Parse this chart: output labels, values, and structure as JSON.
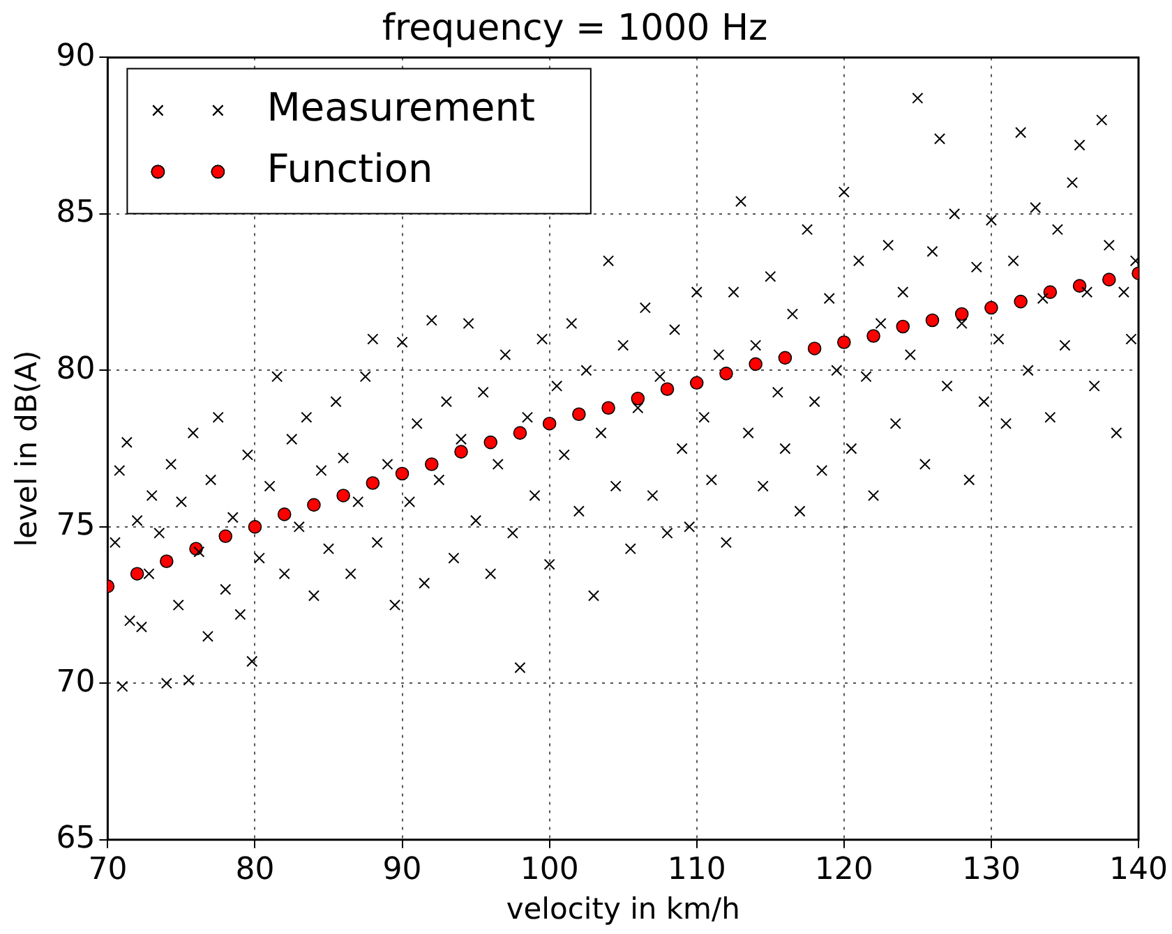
{
  "chart_data": {
    "type": "scatter",
    "title": "frequency = 1000 Hz",
    "xlabel": "velocity in km/h",
    "ylabel": "level in dB(A)",
    "xlim": [
      70,
      140
    ],
    "xticks": [
      70,
      80,
      90,
      100,
      110,
      120,
      130,
      140
    ],
    "ylim": [
      65,
      90
    ],
    "yticks": [
      65,
      70,
      75,
      80,
      85,
      90
    ],
    "grid": true,
    "legend": "top left",
    "series": [
      {
        "name": "Measurement",
        "color": "#000000",
        "marker": "cross",
        "x": [
          70.5,
          70.8,
          71,
          71.3,
          71.5,
          72,
          72.3,
          72.8,
          73,
          73.5,
          74,
          74.3,
          74.8,
          75,
          75.5,
          75.8,
          76.2,
          76.8,
          77,
          77.5,
          78,
          78.5,
          79,
          79.5,
          79.8,
          80.3,
          81,
          81.5,
          82,
          82.5,
          83,
          83.5,
          84,
          84.5,
          85,
          85.5,
          86,
          86.5,
          87,
          87.5,
          88,
          88.3,
          89,
          89.5,
          90,
          90.5,
          91,
          91.5,
          92,
          92.5,
          93,
          93.5,
          94,
          94.5,
          95,
          95.5,
          96,
          96.5,
          97,
          97.5,
          98,
          98.5,
          99,
          99.5,
          100,
          100.5,
          101,
          101.5,
          102,
          102.5,
          103,
          103.5,
          104,
          104.5,
          105,
          105.5,
          106,
          106.5,
          107,
          107.5,
          108,
          108.5,
          109,
          109.5,
          110,
          110.5,
          111,
          111.5,
          112,
          112.5,
          113,
          113.5,
          114,
          114.5,
          115,
          115.5,
          116,
          116.5,
          117,
          117.5,
          118,
          118.5,
          119,
          119.5,
          120,
          120.5,
          121,
          121.5,
          122,
          122.5,
          123,
          123.5,
          124,
          124.5,
          125,
          125.5,
          126,
          126.5,
          127,
          127.5,
          128,
          128.5,
          129,
          129.5,
          130,
          130.5,
          131,
          131.5,
          132,
          132.5,
          133,
          133.5,
          134,
          134.5,
          135,
          135.5,
          136,
          136.5,
          137,
          137.5,
          138,
          138.5,
          139,
          139.5,
          139.8
        ],
        "values": [
          74.5,
          76.8,
          69.9,
          77.7,
          72.0,
          75.2,
          71.8,
          73.5,
          76.0,
          74.8,
          70.0,
          77.0,
          72.5,
          75.8,
          70.1,
          78.0,
          74.2,
          71.5,
          76.5,
          78.5,
          73.0,
          75.3,
          72.2,
          77.3,
          70.7,
          74.0,
          76.3,
          79.8,
          73.5,
          77.8,
          75.0,
          78.5,
          72.8,
          76.8,
          74.3,
          79.0,
          77.2,
          73.5,
          75.8,
          79.8,
          81.0,
          74.5,
          77.0,
          72.5,
          80.9,
          75.8,
          78.3,
          73.2,
          81.6,
          76.5,
          79.0,
          74.0,
          77.8,
          81.5,
          75.2,
          79.3,
          73.5,
          77.0,
          80.5,
          74.8,
          70.5,
          78.5,
          76.0,
          81.0,
          73.8,
          79.5,
          77.3,
          81.5,
          75.5,
          80.0,
          72.8,
          78.0,
          83.5,
          76.3,
          80.8,
          74.3,
          78.8,
          82.0,
          76.0,
          79.8,
          74.8,
          81.3,
          77.5,
          75.0,
          82.5,
          78.5,
          76.5,
          80.5,
          74.5,
          82.5,
          85.4,
          78.0,
          80.8,
          76.3,
          83.0,
          79.3,
          77.5,
          81.8,
          75.5,
          84.5,
          79.0,
          76.8,
          82.3,
          80.0,
          85.7,
          77.5,
          83.5,
          79.8,
          76.0,
          81.5,
          84.0,
          78.3,
          82.5,
          80.5,
          88.7,
          77.0,
          83.8,
          87.4,
          79.5,
          85.0,
          81.5,
          76.5,
          83.3,
          79.0,
          84.8,
          81.0,
          78.3,
          83.5,
          87.6,
          80.0,
          85.2,
          82.3,
          78.5,
          84.5,
          80.8,
          86.0,
          87.2,
          82.5,
          79.5,
          88.0,
          84.0,
          78.0,
          82.5,
          81.0,
          83.5
        ]
      },
      {
        "name": "Function",
        "color": "#ff0000",
        "marker": "circle",
        "x": [
          70,
          72,
          74,
          76,
          78,
          80,
          82,
          84,
          86,
          88,
          90,
          92,
          94,
          96,
          98,
          100,
          102,
          104,
          106,
          108,
          110,
          112,
          114,
          116,
          118,
          120,
          122,
          124,
          126,
          128,
          130,
          132,
          134,
          136,
          138,
          140
        ],
        "values": [
          73.1,
          73.5,
          73.9,
          74.3,
          74.7,
          75.0,
          75.4,
          75.7,
          76.0,
          76.4,
          76.7,
          77.0,
          77.4,
          77.7,
          78.0,
          78.3,
          78.6,
          78.8,
          79.1,
          79.4,
          79.6,
          79.9,
          80.2,
          80.4,
          80.7,
          80.9,
          81.1,
          81.4,
          81.6,
          81.8,
          82.0,
          82.2,
          82.5,
          82.7,
          82.9,
          83.1
        ]
      }
    ]
  }
}
